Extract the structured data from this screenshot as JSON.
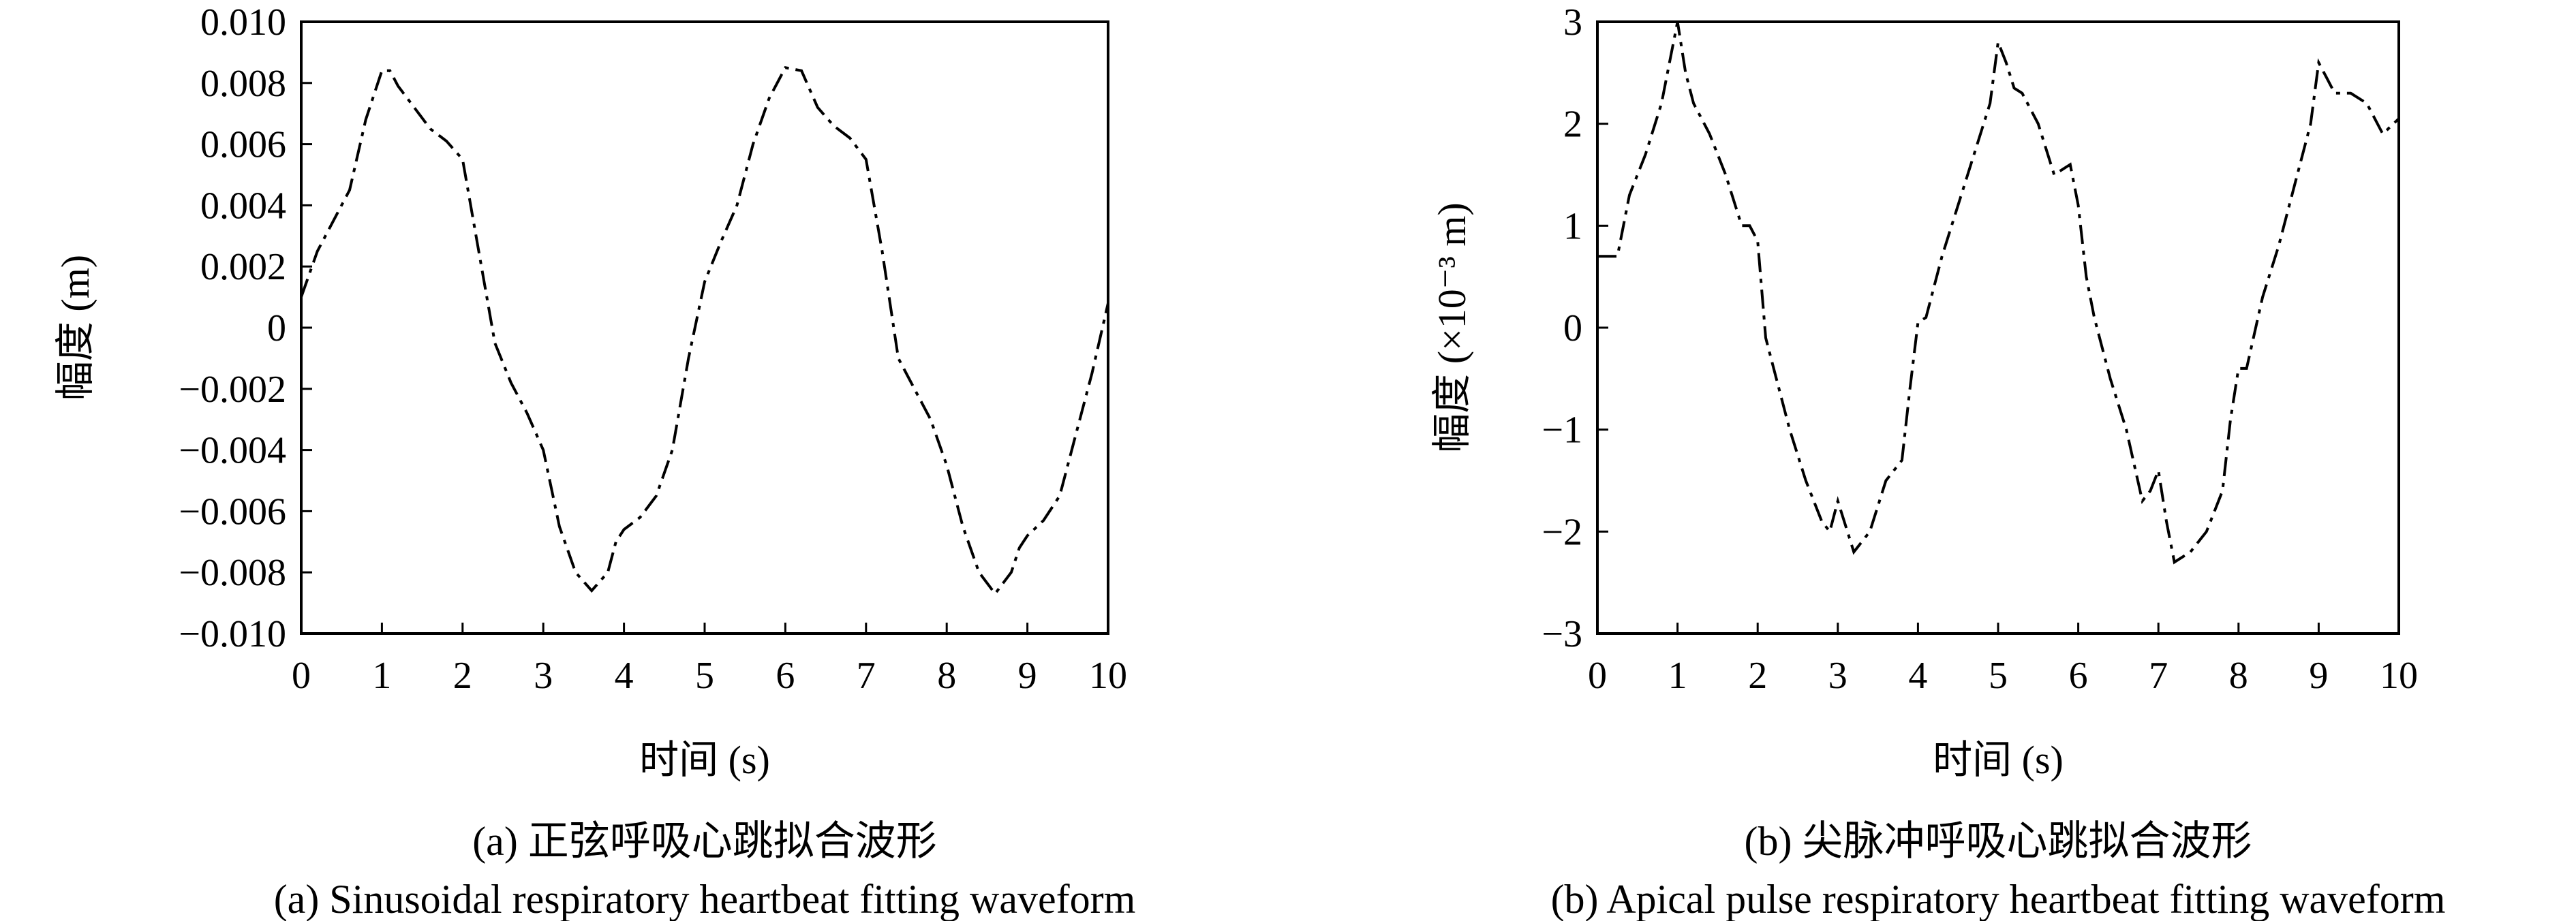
{
  "chart_data": [
    {
      "type": "line",
      "ylabel": "幅度 (m)",
      "xlabel": "时间 (s)",
      "caption_cn": "(a) 正弦呼吸心跳拟合波形",
      "caption_en": "(a) Sinusoidal respiratory heartbeat fitting waveform",
      "xlim": [
        0,
        10
      ],
      "ylim": [
        -0.01,
        0.01
      ],
      "xticks": [
        0,
        1,
        2,
        3,
        4,
        5,
        6,
        7,
        8,
        9,
        10
      ],
      "xtick_labels": [
        "0",
        "1",
        "2",
        "3",
        "4",
        "5",
        "6",
        "7",
        "8",
        "9",
        "10"
      ],
      "yticks": [
        0.01,
        0.008,
        0.006,
        0.004,
        0.002,
        0,
        -0.002,
        -0.004,
        -0.006,
        -0.008,
        -0.01
      ],
      "ytick_labels": [
        "0.010",
        "0.008",
        "0.006",
        "0.004",
        "0.002",
        "0",
        "−0.002",
        "−0.004",
        "−0.006",
        "−0.008",
        "−0.010"
      ],
      "line_style": "dash-dot",
      "line_color": "#000000",
      "grid": false,
      "series": [
        {
          "x": [
            0,
            0.2,
            0.6,
            0.8,
            1.0,
            1.1,
            1.2,
            1.4,
            1.6,
            1.8,
            2.0,
            2.2,
            2.4,
            2.6,
            2.8,
            3.0,
            3.2,
            3.4,
            3.6,
            3.8,
            3.9,
            4.0,
            4.2,
            4.4,
            4.6,
            4.8,
            5.0,
            5.2,
            5.4,
            5.6,
            5.8,
            6.0,
            6.2,
            6.4,
            6.6,
            6.8,
            7.0,
            7.2,
            7.4,
            7.6,
            7.8,
            8.0,
            8.2,
            8.4,
            8.6,
            8.8,
            8.9,
            9.0,
            9.2,
            9.4,
            9.6,
            9.8,
            10.0
          ],
          "y": [
            0.001,
            0.0025,
            0.0045,
            0.0068,
            0.0084,
            0.0084,
            0.0079,
            0.0072,
            0.0065,
            0.0061,
            0.0055,
            0.0025,
            -0.0005,
            -0.0018,
            -0.0028,
            -0.004,
            -0.0065,
            -0.008,
            -0.0086,
            -0.008,
            -0.007,
            -0.0066,
            -0.0062,
            -0.0055,
            -0.004,
            -0.001,
            0.0015,
            0.0028,
            0.004,
            0.006,
            0.0075,
            0.0085,
            0.0084,
            0.0072,
            0.0066,
            0.0062,
            0.0055,
            0.0025,
            -0.001,
            -0.002,
            -0.003,
            -0.0045,
            -0.0065,
            -0.008,
            -0.0087,
            -0.008,
            -0.0072,
            -0.0068,
            -0.0063,
            -0.0055,
            -0.0035,
            -0.0015,
            0.0008
          ]
        }
      ]
    },
    {
      "type": "line",
      "ylabel": "幅度 (×10⁻³ m)",
      "xlabel": "时间 (s)",
      "caption_cn": "(b) 尖脉冲呼吸心跳拟合波形",
      "caption_en": "(b) Apical pulse respiratory heartbeat fitting waveform",
      "xlim": [
        0,
        10
      ],
      "ylim": [
        -3,
        3
      ],
      "xticks": [
        0,
        1,
        2,
        3,
        4,
        5,
        6,
        7,
        8,
        9,
        10
      ],
      "xtick_labels": [
        "0",
        "1",
        "2",
        "3",
        "4",
        "5",
        "6",
        "7",
        "8",
        "9",
        "10"
      ],
      "yticks": [
        3,
        2,
        1,
        0,
        -1,
        -2,
        -3
      ],
      "ytick_labels": [
        "3",
        "2",
        "1",
        "0",
        "−1",
        "−2",
        "−3"
      ],
      "line_style": "dash-dot",
      "line_color": "#000000",
      "grid": false,
      "series": [
        {
          "x": [
            0,
            0.25,
            0.4,
            0.6,
            0.8,
            0.9,
            1.0,
            1.1,
            1.2,
            1.4,
            1.6,
            1.8,
            1.9,
            2.0,
            2.1,
            2.2,
            2.4,
            2.6,
            2.8,
            2.9,
            3.0,
            3.2,
            3.4,
            3.6,
            3.8,
            3.9,
            4.0,
            4.1,
            4.3,
            4.5,
            4.7,
            4.9,
            5.0,
            5.1,
            5.2,
            5.3,
            5.5,
            5.7,
            5.9,
            6.0,
            6.1,
            6.2,
            6.4,
            6.6,
            6.8,
            6.9,
            7.0,
            7.1,
            7.2,
            7.4,
            7.6,
            7.8,
            7.9,
            8.0,
            8.1,
            8.3,
            8.5,
            8.7,
            8.9,
            9.0,
            9.1,
            9.2,
            9.4,
            9.6,
            9.8,
            10.0
          ],
          "y": [
            0.7,
            0.7,
            1.3,
            1.7,
            2.2,
            2.6,
            3.0,
            2.5,
            2.2,
            1.9,
            1.5,
            1.0,
            1.0,
            0.85,
            -0.1,
            -0.4,
            -1.0,
            -1.5,
            -1.9,
            -2.0,
            -1.7,
            -2.2,
            -2.0,
            -1.5,
            -1.3,
            -0.6,
            0.05,
            0.1,
            0.7,
            1.2,
            1.7,
            2.2,
            2.8,
            2.6,
            2.35,
            2.3,
            2.0,
            1.5,
            1.6,
            1.2,
            0.5,
            0.1,
            -0.5,
            -1.0,
            -1.7,
            -1.6,
            -1.4,
            -1.9,
            -2.3,
            -2.2,
            -2.0,
            -1.6,
            -0.9,
            -0.4,
            -0.4,
            0.3,
            0.8,
            1.4,
            2.0,
            2.6,
            2.45,
            2.3,
            2.3,
            2.2,
            1.9,
            2.05
          ]
        }
      ]
    }
  ]
}
